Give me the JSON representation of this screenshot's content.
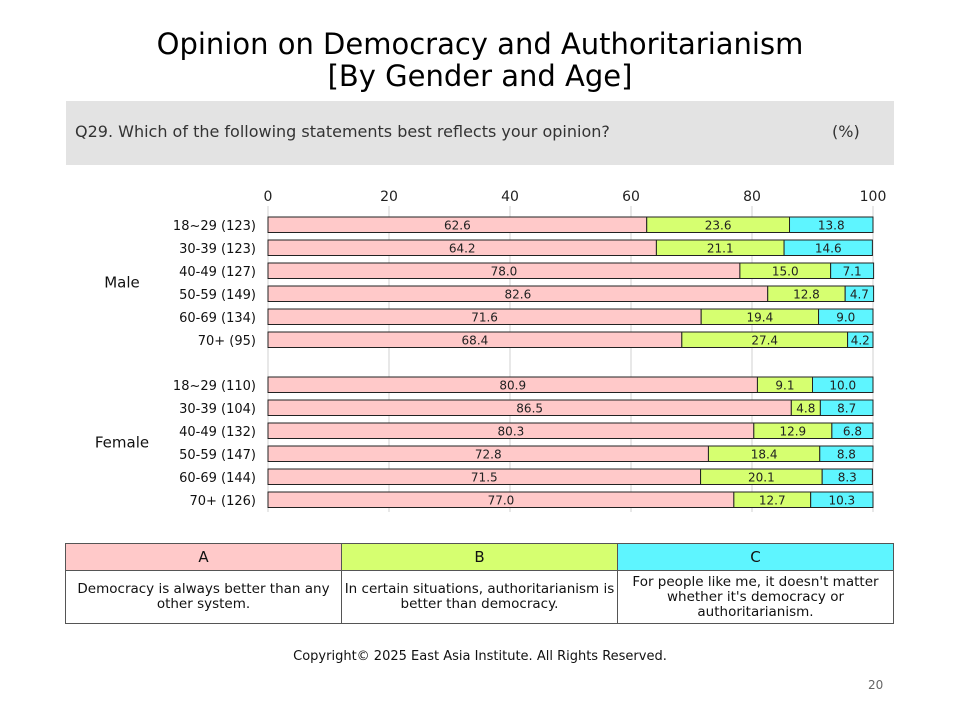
{
  "title_line1": "Opinion on Democracy and Authoritarianism",
  "title_line2": "[By Gender and Age]",
  "question": "Q29. Which of the following statements best reflects your opinion?",
  "unit": "(%)",
  "legend": [
    {
      "code": "A",
      "text": "Democracy is always better than any other system.",
      "color": "#ffc9c9"
    },
    {
      "code": "B",
      "text": "In certain situations, authoritarianism is better than democracy.",
      "color": "#d6ff70"
    },
    {
      "code": "C",
      "text": "For people like me, it doesn't matter whether it's democracy or authoritarianism.",
      "color": "#5ef5ff"
    }
  ],
  "copyright": "Copyright© 2025 East Asia Institute. All Rights Reserved.",
  "page_number": "20",
  "chart_data": {
    "type": "bar",
    "orientation": "horizontal",
    "stacked": true,
    "xlim": [
      0,
      100
    ],
    "xticks": [
      "0",
      "20",
      "40",
      "60",
      "80",
      "100"
    ],
    "grid": true,
    "groups": [
      {
        "name": "Male",
        "categories": [
          "18~29 (123)",
          "30-39 (123)",
          "40-49 (127)",
          "50-59 (149)",
          "60-69 (134)",
          "70+ (95)"
        ]
      },
      {
        "name": "Female",
        "categories": [
          "18~29 (110)",
          "30-39 (104)",
          "40-49 (132)",
          "50-59 (147)",
          "60-69 (144)",
          "70+ (126)"
        ]
      }
    ],
    "series": [
      {
        "name": "A",
        "color": "#ffc9c9",
        "values": [
          62.6,
          64.2,
          78.0,
          82.6,
          71.6,
          68.4,
          80.9,
          86.5,
          80.3,
          72.8,
          71.5,
          77.0
        ]
      },
      {
        "name": "B",
        "color": "#d6ff70",
        "values": [
          23.6,
          21.1,
          15.0,
          12.8,
          19.4,
          27.4,
          9.1,
          4.8,
          12.9,
          18.4,
          20.1,
          12.7
        ]
      },
      {
        "name": "C",
        "color": "#5ef5ff",
        "values": [
          13.8,
          14.6,
          7.1,
          4.7,
          9.0,
          4.2,
          10.0,
          8.7,
          6.8,
          8.8,
          8.3,
          10.3
        ]
      }
    ]
  }
}
